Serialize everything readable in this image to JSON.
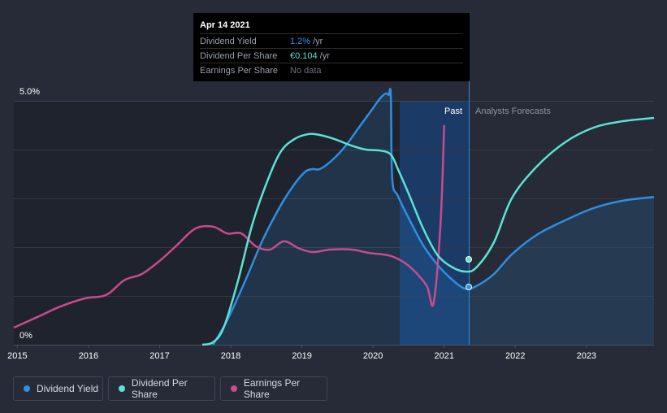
{
  "tooltip": {
    "date": "Apr 14 2021",
    "rows": [
      {
        "label": "Dividend Yield",
        "value": "1.2%",
        "unit": "/yr"
      },
      {
        "label": "Dividend Per Share",
        "value": "€0.104",
        "unit": "/yr"
      },
      {
        "label": "Earnings Per Share",
        "value": "No data",
        "unit": ""
      }
    ]
  },
  "section_labels": {
    "past": "Past",
    "forecast": "Analysts Forecasts"
  },
  "legend": [
    {
      "label": "Dividend Yield",
      "color": "#2d8fe3"
    },
    {
      "label": "Dividend Per Share",
      "color": "#5be3d3"
    },
    {
      "label": "Earnings Per Share",
      "color": "#c94b8c"
    }
  ],
  "chart_data": {
    "type": "line",
    "title": "",
    "xlabel": "",
    "ylabel": "",
    "x_ticks": [
      "2015",
      "2016",
      "2017",
      "2018",
      "2019",
      "2020",
      "2021",
      "2022",
      "2023"
    ],
    "y_ticks": [
      "0%",
      "5.0%"
    ],
    "ylim": [
      0,
      5.0
    ],
    "xlim": [
      2014.95,
      2023.95
    ],
    "marker_date": 2021.29,
    "past_shade_start": 2020.27,
    "series": [
      {
        "name": "Dividend Yield",
        "color": "#2d8fe3",
        "filled": true,
        "x": [
          2017.75,
          2017.95,
          2018.2,
          2018.45,
          2018.7,
          2018.9,
          2019.05,
          2019.15,
          2019.25,
          2019.4,
          2019.6,
          2019.8,
          2020.0,
          2020.1,
          2020.18,
          2020.22,
          2020.25,
          2020.27,
          2020.35,
          2020.5,
          2020.7,
          2020.9,
          2021.1,
          2021.29,
          2021.45,
          2021.7,
          2021.95,
          2022.3,
          2022.7,
          2023.1,
          2023.5,
          2023.95
        ],
        "y": [
          0.0,
          0.5,
          1.3,
          2.15,
          2.85,
          3.3,
          3.55,
          3.6,
          3.6,
          3.75,
          4.05,
          4.45,
          4.85,
          5.05,
          5.15,
          5.12,
          5.12,
          3.4,
          3.05,
          2.6,
          2.05,
          1.65,
          1.35,
          1.15,
          1.2,
          1.45,
          1.85,
          2.25,
          2.55,
          2.8,
          2.95,
          3.03
        ]
      },
      {
        "name": "Dividend Per Share",
        "color": "#5be3d3",
        "filled": false,
        "x": [
          2017.6,
          2017.75,
          2017.9,
          2018.1,
          2018.3,
          2018.5,
          2018.7,
          2018.9,
          2019.1,
          2019.25,
          2019.45,
          2019.7,
          2019.9,
          2020.1,
          2020.25,
          2020.35,
          2020.5,
          2020.7,
          2020.9,
          2021.1,
          2021.29,
          2021.45,
          2021.7,
          2021.95,
          2022.3,
          2022.7,
          2023.1,
          2023.5,
          2023.95
        ],
        "y": [
          0.0,
          0.05,
          0.35,
          1.3,
          2.45,
          3.3,
          3.95,
          4.22,
          4.32,
          4.3,
          4.22,
          4.08,
          4.0,
          3.98,
          3.9,
          3.6,
          3.1,
          2.4,
          1.85,
          1.6,
          1.5,
          1.58,
          2.1,
          3.0,
          3.65,
          4.15,
          4.45,
          4.58,
          4.65
        ]
      },
      {
        "name": "Earnings Per Share",
        "color": "#c94b8c",
        "filled": false,
        "x": [
          2014.95,
          2015.3,
          2015.6,
          2015.95,
          2016.25,
          2016.5,
          2016.75,
          2017.0,
          2017.25,
          2017.5,
          2017.75,
          2017.95,
          2018.15,
          2018.35,
          2018.55,
          2018.75,
          2018.95,
          2019.15,
          2019.4,
          2019.7,
          2019.95,
          2020.25,
          2020.5,
          2020.75,
          2020.85,
          2020.95,
          2021.0
        ],
        "y": [
          0.35,
          0.58,
          0.78,
          0.95,
          1.02,
          1.32,
          1.45,
          1.72,
          2.05,
          2.38,
          2.42,
          2.28,
          2.28,
          2.02,
          1.95,
          2.12,
          1.98,
          1.9,
          1.95,
          1.95,
          1.88,
          1.82,
          1.62,
          1.22,
          0.85,
          2.5,
          4.5
        ]
      }
    ]
  }
}
